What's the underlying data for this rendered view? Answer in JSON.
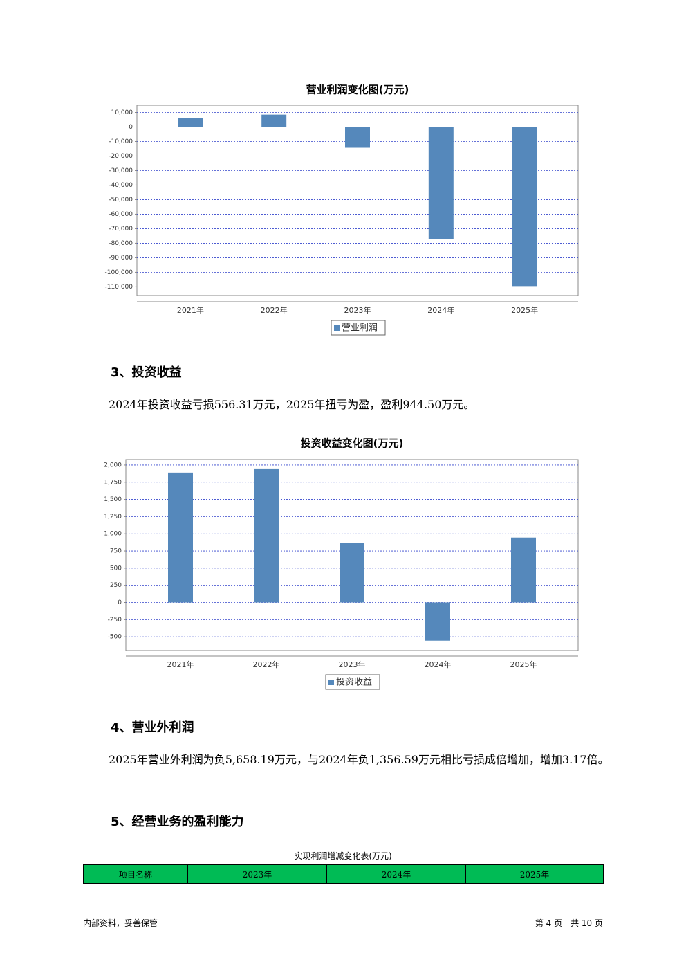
{
  "charts": [
    {
      "type": "bar",
      "title": "营业利润变化图(万元)",
      "categories": [
        "2021年",
        "2022年",
        "2023年",
        "2024年",
        "2025年"
      ],
      "series": [
        {
          "name": "营业利润",
          "color": "#5588bb",
          "values": [
            6000,
            8500,
            -14300,
            -77000,
            -109500
          ]
        }
      ],
      "ylim": [
        -116000,
        15000
      ],
      "yticks": [
        {
          "value": 10000,
          "label": "10,000"
        },
        0,
        {
          "value": -10000,
          "label": "-10,000"
        },
        {
          "value": -20000,
          "label": "-20,000"
        },
        {
          "value": -30000,
          "label": "-30,000"
        },
        {
          "value": -40000,
          "label": "-40,000"
        },
        {
          "value": -50000,
          "label": "-50,000"
        },
        {
          "value": -60000,
          "label": "-60,000"
        },
        {
          "value": -70000,
          "label": "-70,000"
        },
        {
          "value": -80000,
          "label": "-80,000"
        },
        {
          "value": -90000,
          "label": "-90,000"
        },
        {
          "value": -100000,
          "label": "-100,000"
        },
        {
          "value": -110000,
          "label": "-110,000"
        }
      ],
      "grid": true
    },
    {
      "type": "bar",
      "title": "投资收益变化图(万元)",
      "categories": [
        "2021年",
        "2022年",
        "2023年",
        "2024年",
        "2025年"
      ],
      "series": [
        {
          "name": "投资收益",
          "color": "#5588bb",
          "values": [
            1890,
            1950,
            865,
            -556.31,
            944.5
          ]
        }
      ],
      "ylim": [
        -700,
        2080
      ],
      "yticks": [
        {
          "value": 2000,
          "label": "2,000"
        },
        {
          "value": 1750,
          "label": "1,750"
        },
        {
          "value": 1500,
          "label": "1,500"
        },
        {
          "value": 1250,
          "label": "1,250"
        },
        {
          "value": 1000,
          "label": "1,000"
        },
        750,
        500,
        250,
        0,
        -250,
        -500
      ],
      "grid": true
    }
  ],
  "sections": [
    {
      "heading": "3、投资收益",
      "text": "2024年投资收益亏损556.31万元，2025年扭亏为盈，盈利944.50万元。"
    },
    {
      "heading": "4、营业外利润",
      "text": "2025年营业外利润为负5,658.19万元，与2024年负1,356.59万元相比亏损成倍增加，增加3.17倍。"
    },
    {
      "heading": "5、经营业务的盈利能力"
    }
  ],
  "table": {
    "title": "实现利润增减变化表(万元)",
    "header": [
      "项目名称",
      "2023年",
      "2024年",
      "2025年"
    ]
  },
  "footer": {
    "left": "内部资料，妥善保管",
    "right": "第 4 页　共 10 页"
  }
}
